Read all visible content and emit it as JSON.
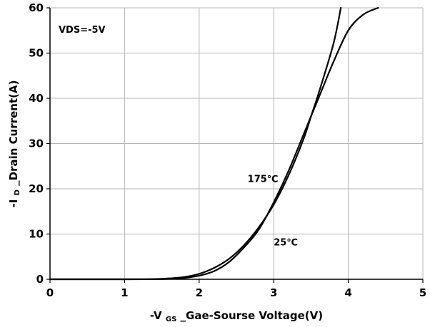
{
  "chart_data": {
    "type": "line",
    "title": "",
    "xlabel": {
      "prefix": "-V",
      "subscript": "GS",
      "suffix": "_Gae-Sourse Voltage(V)"
    },
    "ylabel": {
      "prefix": "-I",
      "subscript": "D",
      "suffix": "_Drain Current(A)"
    },
    "xlim": [
      0,
      5
    ],
    "ylim": [
      0,
      60
    ],
    "x_ticks": [
      0,
      1,
      2,
      3,
      4,
      5
    ],
    "y_ticks": [
      0,
      10,
      20,
      30,
      40,
      50,
      60
    ],
    "x_tick_labels": [
      "0",
      "1",
      "2",
      "3",
      "4",
      "5"
    ],
    "y_tick_labels": [
      "0",
      "10",
      "20",
      "30",
      "40",
      "50",
      "60"
    ],
    "grid": true,
    "grid_color": "#b4b4b4",
    "line_color": "#000000",
    "annotation": "VDS=-5V",
    "series": [
      {
        "name": "175℃",
        "x": [
          0,
          1.0,
          1.4,
          1.6,
          1.8,
          2.0,
          2.2,
          2.4,
          2.6,
          2.8,
          3.0,
          3.2,
          3.4,
          3.5,
          3.6,
          3.8,
          3.9
        ],
        "y": [
          0,
          0,
          0.05,
          0.2,
          0.5,
          1.2,
          2.5,
          4.5,
          7.5,
          11.5,
          16.5,
          23,
          31,
          36,
          41,
          52,
          60
        ]
      },
      {
        "name": "25℃",
        "x": [
          0,
          1.0,
          1.4,
          1.6,
          1.8,
          2.0,
          2.2,
          2.4,
          2.6,
          2.8,
          3.0,
          3.2,
          3.4,
          3.5,
          3.6,
          3.8,
          4.0,
          4.2,
          4.4
        ],
        "y": [
          0,
          0,
          0.02,
          0.1,
          0.3,
          0.8,
          1.8,
          3.8,
          7.0,
          11.0,
          17.0,
          24.0,
          32.0,
          36.0,
          40.0,
          48.0,
          55.0,
          58.5,
          60
        ]
      }
    ],
    "series_labels": [
      {
        "text": "175℃",
        "series": 0,
        "x": 2.65,
        "y": 21.5,
        "anchor": "start"
      },
      {
        "text": "25℃",
        "series": 1,
        "x": 3.0,
        "y": 7.5,
        "anchor": "start"
      }
    ]
  }
}
